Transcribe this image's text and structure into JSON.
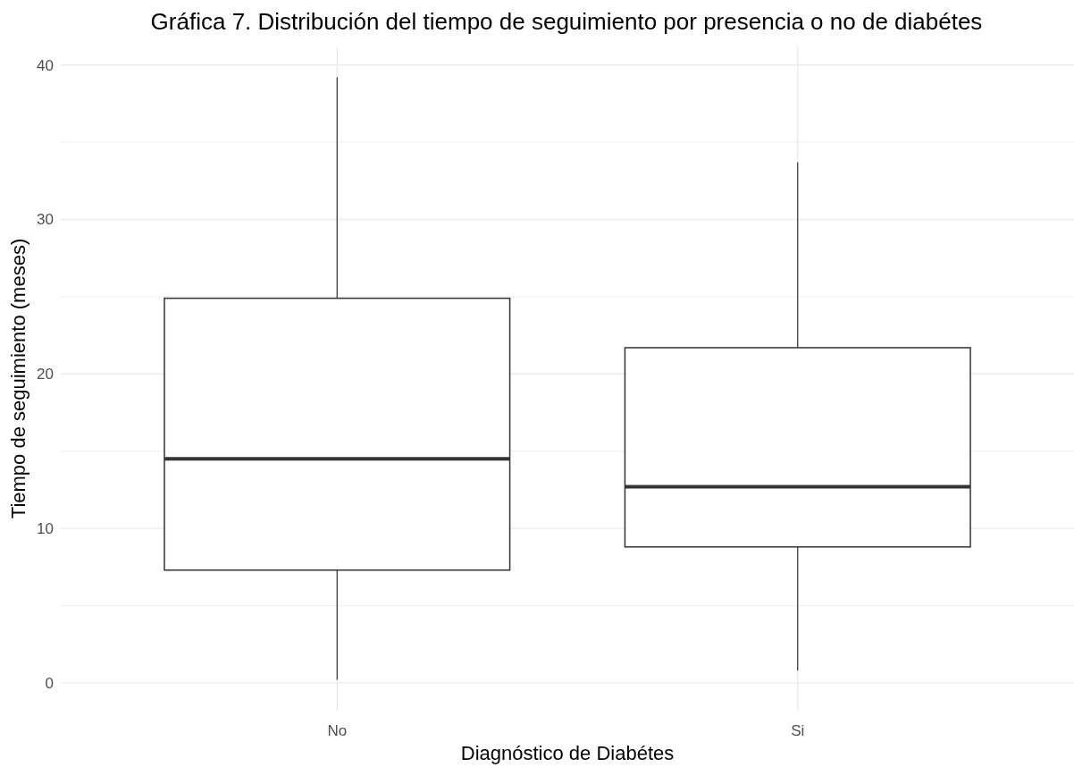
{
  "chart_data": {
    "type": "box",
    "title": "Gráfica 7. Distribución del tiempo de seguimiento por presencia o no de diabétes",
    "xlabel": "Diagnóstico de Diabétes",
    "ylabel": "Tiempo de seguimiento (meses)",
    "categories": [
      "No",
      "Si"
    ],
    "boxes": [
      {
        "low": 0.2,
        "q1": 7.3,
        "median": 14.5,
        "q3": 24.9,
        "high": 39.2
      },
      {
        "low": 0.8,
        "q1": 8.8,
        "median": 12.7,
        "q3": 21.7,
        "high": 33.7
      }
    ],
    "ylim": [
      -1.8,
      41.2
    ],
    "yticks": [
      0,
      {
        "value": 5,
        "label": null
      },
      10,
      {
        "value": 15,
        "label": null
      },
      20,
      {
        "value": 25,
        "label": null
      },
      30,
      {
        "value": 35,
        "label": null
      },
      40
    ],
    "grid": true
  }
}
